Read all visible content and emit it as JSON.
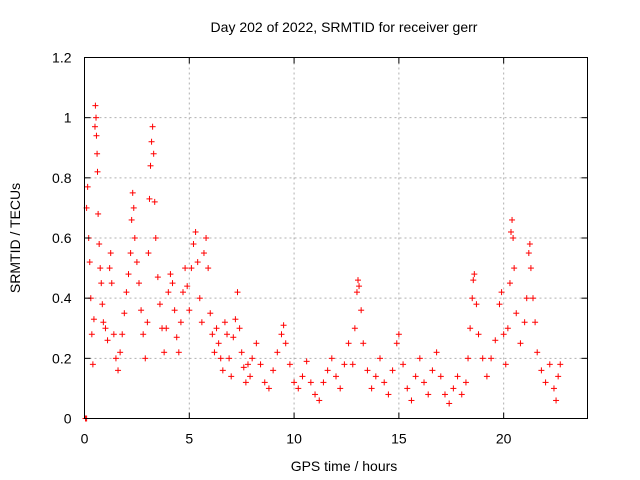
{
  "chart_data": {
    "type": "scatter",
    "title": "Day 202 of 2022, SRMTID for receiver gerr",
    "xlabel": "GPS time / hours",
    "ylabel": "SRMTID / TECUs",
    "xlim": [
      0,
      24
    ],
    "ylim": [
      0,
      1.2
    ],
    "xticks": [
      0,
      5,
      10,
      15,
      20
    ],
    "xtick_labels": [
      "0",
      "5",
      "10",
      "15",
      "20"
    ],
    "yticks": [
      0,
      0.2,
      0.4,
      0.6,
      0.8,
      1.0,
      1.2
    ],
    "ytick_labels": [
      "0",
      "0.2",
      "0.4",
      "0.6",
      "0.8",
      "1",
      "1.2"
    ],
    "grid": true,
    "marker": "+",
    "color": "#ff0000",
    "series": [
      {
        "name": "SRMTID",
        "points": [
          [
            0.05,
            0.0
          ],
          [
            0.1,
            0.0
          ],
          [
            0.1,
            0.7
          ],
          [
            0.15,
            0.77
          ],
          [
            0.2,
            0.6
          ],
          [
            0.25,
            0.52
          ],
          [
            0.3,
            0.4
          ],
          [
            0.35,
            0.28
          ],
          [
            0.4,
            0.18
          ],
          [
            0.45,
            0.33
          ],
          [
            0.5,
            0.97
          ],
          [
            0.52,
            1.04
          ],
          [
            0.55,
            1.0
          ],
          [
            0.57,
            0.94
          ],
          [
            0.6,
            0.88
          ],
          [
            0.62,
            0.82
          ],
          [
            0.65,
            0.68
          ],
          [
            0.7,
            0.58
          ],
          [
            0.75,
            0.5
          ],
          [
            0.8,
            0.45
          ],
          [
            0.85,
            0.38
          ],
          [
            0.9,
            0.32
          ],
          [
            1.0,
            0.3
          ],
          [
            1.1,
            0.26
          ],
          [
            1.2,
            0.5
          ],
          [
            1.25,
            0.55
          ],
          [
            1.3,
            0.45
          ],
          [
            1.4,
            0.28
          ],
          [
            1.5,
            0.2
          ],
          [
            1.6,
            0.16
          ],
          [
            1.7,
            0.22
          ],
          [
            1.8,
            0.28
          ],
          [
            1.9,
            0.35
          ],
          [
            2.0,
            0.42
          ],
          [
            2.1,
            0.48
          ],
          [
            2.2,
            0.55
          ],
          [
            2.25,
            0.66
          ],
          [
            2.3,
            0.75
          ],
          [
            2.35,
            0.7
          ],
          [
            2.4,
            0.6
          ],
          [
            2.5,
            0.52
          ],
          [
            2.6,
            0.45
          ],
          [
            2.7,
            0.36
          ],
          [
            2.8,
            0.28
          ],
          [
            2.9,
            0.2
          ],
          [
            3.0,
            0.32
          ],
          [
            3.05,
            0.55
          ],
          [
            3.1,
            0.73
          ],
          [
            3.15,
            0.84
          ],
          [
            3.2,
            0.92
          ],
          [
            3.25,
            0.97
          ],
          [
            3.3,
            0.88
          ],
          [
            3.35,
            0.72
          ],
          [
            3.4,
            0.6
          ],
          [
            3.5,
            0.47
          ],
          [
            3.6,
            0.38
          ],
          [
            3.7,
            0.3
          ],
          [
            3.8,
            0.22
          ],
          [
            3.9,
            0.3
          ],
          [
            4.0,
            0.42
          ],
          [
            4.1,
            0.48
          ],
          [
            4.2,
            0.45
          ],
          [
            4.3,
            0.36
          ],
          [
            4.4,
            0.27
          ],
          [
            4.5,
            0.22
          ],
          [
            4.6,
            0.32
          ],
          [
            4.7,
            0.42
          ],
          [
            4.8,
            0.5
          ],
          [
            4.9,
            0.44
          ],
          [
            5.0,
            0.36
          ],
          [
            5.1,
            0.5
          ],
          [
            5.2,
            0.58
          ],
          [
            5.3,
            0.62
          ],
          [
            5.4,
            0.52
          ],
          [
            5.5,
            0.4
          ],
          [
            5.6,
            0.32
          ],
          [
            5.7,
            0.55
          ],
          [
            5.8,
            0.6
          ],
          [
            5.9,
            0.5
          ],
          [
            6.0,
            0.35
          ],
          [
            6.1,
            0.28
          ],
          [
            6.2,
            0.22
          ],
          [
            6.3,
            0.3
          ],
          [
            6.4,
            0.25
          ],
          [
            6.5,
            0.2
          ],
          [
            6.6,
            0.16
          ],
          [
            6.7,
            0.32
          ],
          [
            6.8,
            0.28
          ],
          [
            6.9,
            0.2
          ],
          [
            7.0,
            0.14
          ],
          [
            7.1,
            0.27
          ],
          [
            7.2,
            0.33
          ],
          [
            7.3,
            0.42
          ],
          [
            7.4,
            0.3
          ],
          [
            7.5,
            0.22
          ],
          [
            7.6,
            0.17
          ],
          [
            7.7,
            0.12
          ],
          [
            7.8,
            0.18
          ],
          [
            7.9,
            0.14
          ],
          [
            8.0,
            0.2
          ],
          [
            8.2,
            0.25
          ],
          [
            8.4,
            0.18
          ],
          [
            8.6,
            0.12
          ],
          [
            8.8,
            0.1
          ],
          [
            9.0,
            0.16
          ],
          [
            9.2,
            0.22
          ],
          [
            9.4,
            0.28
          ],
          [
            9.5,
            0.31
          ],
          [
            9.6,
            0.25
          ],
          [
            9.8,
            0.18
          ],
          [
            10.0,
            0.12
          ],
          [
            10.2,
            0.1
          ],
          [
            10.4,
            0.14
          ],
          [
            10.6,
            0.19
          ],
          [
            10.8,
            0.12
          ],
          [
            11.0,
            0.08
          ],
          [
            11.2,
            0.06
          ],
          [
            11.4,
            0.12
          ],
          [
            11.6,
            0.16
          ],
          [
            11.8,
            0.2
          ],
          [
            12.0,
            0.14
          ],
          [
            12.2,
            0.1
          ],
          [
            12.4,
            0.18
          ],
          [
            12.6,
            0.25
          ],
          [
            12.8,
            0.18
          ],
          [
            12.9,
            0.3
          ],
          [
            13.0,
            0.42
          ],
          [
            13.05,
            0.46
          ],
          [
            13.1,
            0.44
          ],
          [
            13.2,
            0.36
          ],
          [
            13.3,
            0.25
          ],
          [
            13.5,
            0.16
          ],
          [
            13.7,
            0.1
          ],
          [
            13.9,
            0.14
          ],
          [
            14.1,
            0.2
          ],
          [
            14.3,
            0.12
          ],
          [
            14.5,
            0.08
          ],
          [
            14.7,
            0.16
          ],
          [
            14.9,
            0.25
          ],
          [
            15.0,
            0.28
          ],
          [
            15.2,
            0.18
          ],
          [
            15.4,
            0.1
          ],
          [
            15.6,
            0.06
          ],
          [
            15.8,
            0.14
          ],
          [
            16.0,
            0.2
          ],
          [
            16.2,
            0.12
          ],
          [
            16.4,
            0.08
          ],
          [
            16.6,
            0.16
          ],
          [
            16.8,
            0.22
          ],
          [
            17.0,
            0.14
          ],
          [
            17.2,
            0.08
          ],
          [
            17.4,
            0.05
          ],
          [
            17.6,
            0.1
          ],
          [
            17.8,
            0.14
          ],
          [
            18.0,
            0.08
          ],
          [
            18.2,
            0.12
          ],
          [
            18.3,
            0.2
          ],
          [
            18.4,
            0.3
          ],
          [
            18.5,
            0.4
          ],
          [
            18.55,
            0.46
          ],
          [
            18.6,
            0.48
          ],
          [
            18.7,
            0.38
          ],
          [
            18.8,
            0.28
          ],
          [
            19.0,
            0.2
          ],
          [
            19.2,
            0.14
          ],
          [
            19.4,
            0.2
          ],
          [
            19.6,
            0.26
          ],
          [
            19.8,
            0.38
          ],
          [
            19.9,
            0.42
          ],
          [
            20.0,
            0.28
          ],
          [
            20.1,
            0.18
          ],
          [
            20.2,
            0.3
          ],
          [
            20.3,
            0.45
          ],
          [
            20.35,
            0.62
          ],
          [
            20.4,
            0.66
          ],
          [
            20.45,
            0.6
          ],
          [
            20.5,
            0.5
          ],
          [
            20.6,
            0.35
          ],
          [
            20.8,
            0.25
          ],
          [
            21.0,
            0.32
          ],
          [
            21.1,
            0.4
          ],
          [
            21.2,
            0.55
          ],
          [
            21.25,
            0.58
          ],
          [
            21.3,
            0.5
          ],
          [
            21.4,
            0.4
          ],
          [
            21.5,
            0.32
          ],
          [
            21.6,
            0.22
          ],
          [
            21.8,
            0.16
          ],
          [
            22.0,
            0.12
          ],
          [
            22.2,
            0.18
          ],
          [
            22.4,
            0.1
          ],
          [
            22.5,
            0.06
          ],
          [
            22.6,
            0.14
          ],
          [
            22.7,
            0.18
          ]
        ]
      }
    ]
  }
}
